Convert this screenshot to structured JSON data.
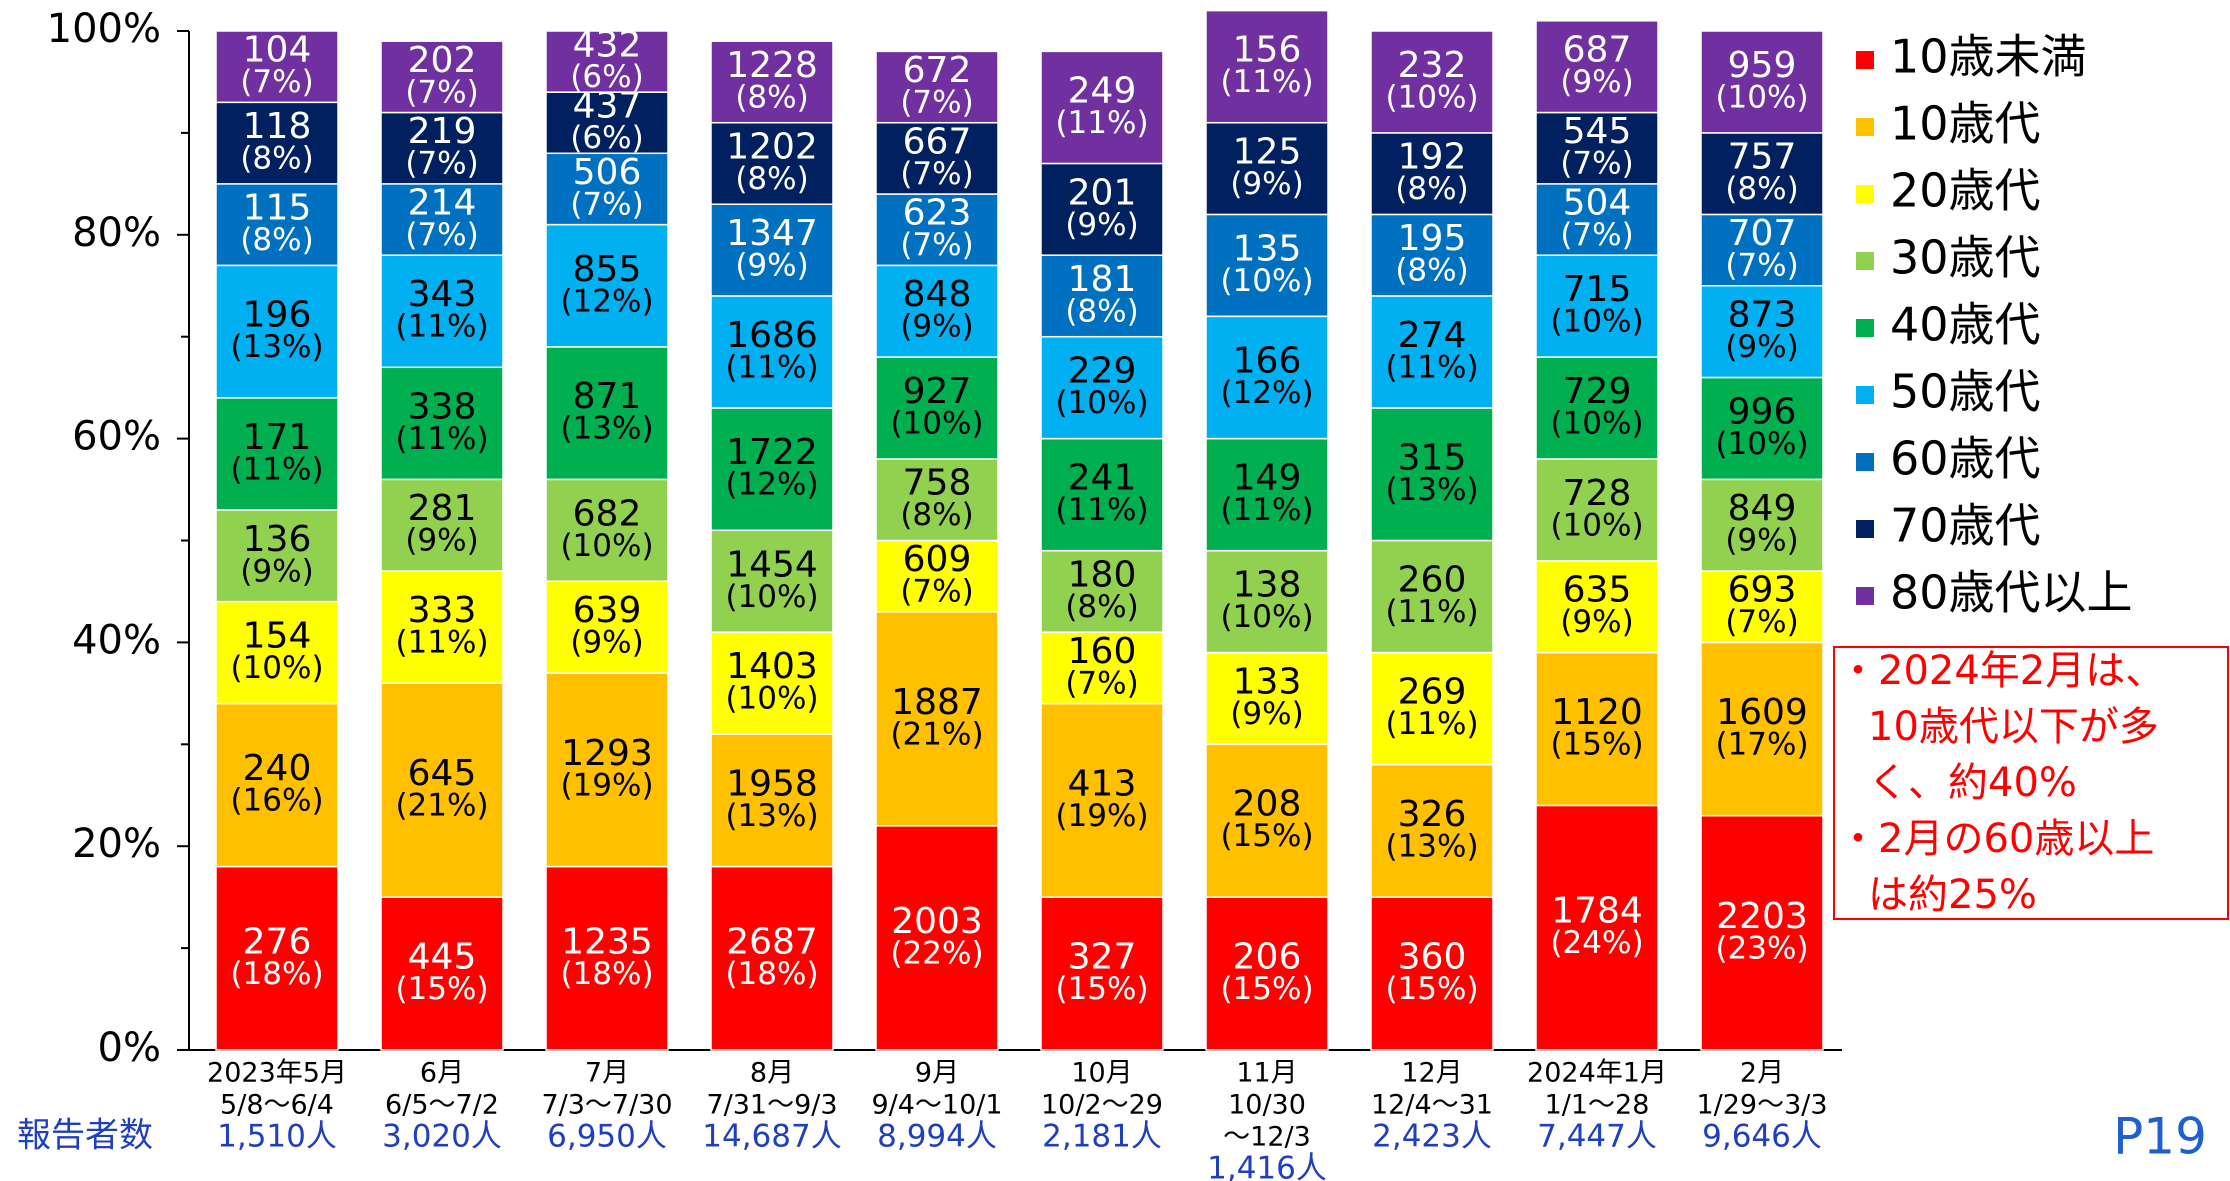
{
  "chart_data": {
    "type": "stacked_bar",
    "categories": [
      "2023年5月",
      "6月",
      "7月",
      "8月",
      "9月",
      "10月",
      "11月",
      "12月",
      "2024年1月",
      "2月"
    ],
    "period_lines": [
      [
        "5/8〜6/4"
      ],
      [
        "6/5〜7/2"
      ],
      [
        "7/3〜7/30"
      ],
      [
        "7/31〜9/3"
      ],
      [
        "9/4〜10/1"
      ],
      [
        "10/2〜29"
      ],
      [
        "10/30",
        "〜12/3"
      ],
      [
        "12/4〜31"
      ],
      [
        "1/1〜28"
      ],
      [
        "1/29〜3/3"
      ]
    ],
    "reporters_label": "報告者数",
    "reporters": [
      "1,510人",
      "3,020人",
      "6,950人",
      "14,687人",
      "8,994人",
      "2,181人",
      "1,416人",
      "2,423人",
      "7,447人",
      "9,646人"
    ],
    "series": [
      {
        "name": "10歳未満",
        "color": "#ff0000",
        "label_color": "#ffffff",
        "values": [
          18,
          15,
          18,
          18,
          22,
          15,
          15,
          15,
          24,
          23
        ],
        "value_labels": [
          "(18%)",
          "(15%)",
          "(18%)",
          "(18%)",
          "(22%)",
          "(15%)",
          "(15%)",
          "(15%)",
          "(24%)",
          "(23%)"
        ],
        "counts": [
          276,
          445,
          1235,
          2687,
          2003,
          327,
          206,
          360,
          1784,
          2203
        ]
      },
      {
        "name": "10歳代",
        "color": "#ffc000",
        "label_color": "#000000",
        "values": [
          16,
          21,
          19,
          13,
          21,
          19,
          15,
          13,
          15,
          17
        ],
        "value_labels": [
          "(16%)",
          "(21%)",
          "(19%)",
          "(13%)",
          "(21%)",
          "(19%)",
          "(15%)",
          "(13%)",
          "(15%)",
          "(17%)"
        ],
        "counts": [
          240,
          645,
          1293,
          1958,
          1887,
          413,
          208,
          326,
          1120,
          1609
        ]
      },
      {
        "name": "20歳代",
        "color": "#ffff00",
        "label_color": "#000000",
        "values": [
          10,
          11,
          9,
          10,
          7,
          7,
          9,
          11,
          9,
          7
        ],
        "value_labels": [
          "(10%)",
          "(11%)",
          "(9%)",
          "(10%)",
          "(7%)",
          "(7%)",
          "(9%)",
          "(11%)",
          "(9%)",
          "(7%)"
        ],
        "counts": [
          154,
          333,
          639,
          1403,
          609,
          160,
          133,
          269,
          635,
          693
        ]
      },
      {
        "name": "30歳代",
        "color": "#92d050",
        "label_color": "#000000",
        "values": [
          9,
          9,
          10,
          10,
          8,
          8,
          10,
          11,
          10,
          9
        ],
        "value_labels": [
          "(9%)",
          "(9%)",
          "(10%)",
          "(10%)",
          "(8%)",
          "(8%)",
          "(10%)",
          "(11%)",
          "(10%)",
          "(9%)"
        ],
        "counts": [
          136,
          281,
          682,
          1454,
          758,
          180,
          138,
          260,
          728,
          849
        ]
      },
      {
        "name": "40歳代",
        "color": "#00b050",
        "label_color": "#000000",
        "values": [
          11,
          11,
          13,
          12,
          10,
          11,
          11,
          13,
          10,
          10
        ],
        "value_labels": [
          "(11%)",
          "(11%)",
          "(13%)",
          "(12%)",
          "(10%)",
          "(11%)",
          "(11%)",
          "(13%)",
          "(10%)",
          "(10%)"
        ],
        "counts": [
          171,
          338,
          871,
          1722,
          927,
          241,
          149,
          315,
          729,
          996
        ]
      },
      {
        "name": "50歳代",
        "color": "#00b0f0",
        "label_color": "#000000",
        "values": [
          13,
          11,
          12,
          11,
          9,
          10,
          12,
          11,
          10,
          9
        ],
        "value_labels": [
          "(13%)",
          "(11%)",
          "(12%)",
          "(11%)",
          "(9%)",
          "(10%)",
          "(12%)",
          "(11%)",
          "(10%)",
          "(9%)"
        ],
        "counts": [
          196,
          343,
          855,
          1686,
          848,
          229,
          166,
          274,
          715,
          873
        ]
      },
      {
        "name": "60歳代",
        "color": "#0070c0",
        "label_color": "#ffffff",
        "values": [
          8,
          7,
          7,
          9,
          7,
          8,
          10,
          8,
          7,
          7
        ],
        "value_labels": [
          "(8%)",
          "(7%)",
          "(7%)",
          "(9%)",
          "(7%)",
          "(8%)",
          "(10%)",
          "(8%)",
          "(7%)",
          "(7%)"
        ],
        "counts": [
          115,
          214,
          506,
          1347,
          623,
          181,
          135,
          195,
          504,
          707
        ]
      },
      {
        "name": "70歳代",
        "color": "#002060",
        "label_color": "#ffffff",
        "values": [
          8,
          7,
          6,
          8,
          7,
          9,
          9,
          8,
          7,
          8
        ],
        "value_labels": [
          "(8%)",
          "(7%)",
          "(6%)",
          "(8%)",
          "(7%)",
          "(9%)",
          "(9%)",
          "(8%)",
          "(7%)",
          "(8%)"
        ],
        "counts": [
          118,
          219,
          437,
          1202,
          667,
          201,
          125,
          192,
          545,
          757
        ]
      },
      {
        "name": "80歳代以上",
        "color": "#7030a0",
        "label_color": "#ffffff",
        "values": [
          7,
          7,
          6,
          8,
          7,
          11,
          11,
          10,
          9,
          10
        ],
        "value_labels": [
          "(7%)",
          "(7%)",
          "(6%)",
          "(8%)",
          "(7%)",
          "(11%)",
          "(11%)",
          "(10%)",
          "(9%)",
          "(10%)"
        ],
        "counts": [
          104,
          202,
          432,
          1228,
          672,
          249,
          156,
          232,
          687,
          959
        ]
      }
    ],
    "ylim": [
      0,
      100
    ],
    "yticks": [
      {
        "value": 0,
        "label": "0%"
      },
      {
        "value": 20,
        "label": "20%"
      },
      {
        "value": 40,
        "label": "40%"
      },
      {
        "value": 60,
        "label": "60%"
      },
      {
        "value": 80,
        "label": "80%"
      },
      {
        "value": 100,
        "label": "100%"
      }
    ],
    "minor_yticks": [
      10,
      30,
      50,
      70,
      90
    ],
    "grid": false,
    "legend": "right",
    "annotation_lines": [
      "・2024年2月は、",
      "10歳代以下が多",
      "く、約40%",
      "・2月の60歳以上",
      "は約25%"
    ],
    "page_number": "P19"
  }
}
